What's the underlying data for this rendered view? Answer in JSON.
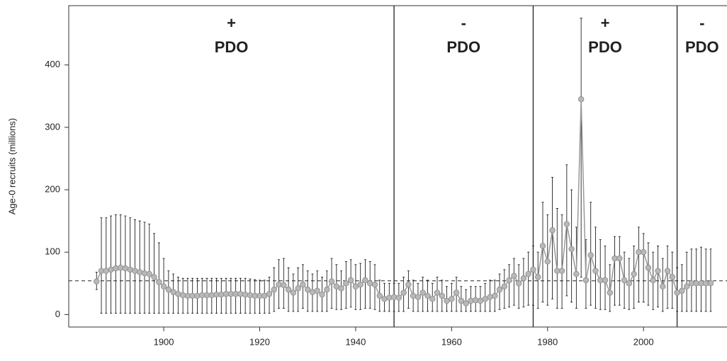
{
  "chart_data": {
    "type": "errorbar-line",
    "y_label": "Age-0 recruits (millions)",
    "xlim": [
      1880.2,
      2017.4
    ],
    "ylim": [
      -20,
      495
    ],
    "xticks": [
      1900,
      1920,
      1940,
      1960,
      1980,
      2000
    ],
    "yticks": [
      0,
      100,
      200,
      300,
      400
    ],
    "reference_line": 54,
    "regime_breaks": [
      1948,
      1977,
      2007
    ],
    "regimes": [
      {
        "sign": "+",
        "label": "PDO"
      },
      {
        "sign": "-",
        "label": "PDO"
      },
      {
        "sign": "+",
        "label": "PDO"
      },
      {
        "sign": "-",
        "label": "PDO"
      }
    ],
    "x": [
      1886,
      1887,
      1888,
      1889,
      1890,
      1891,
      1892,
      1893,
      1894,
      1895,
      1896,
      1897,
      1898,
      1899,
      1900,
      1901,
      1902,
      1903,
      1904,
      1905,
      1906,
      1907,
      1908,
      1909,
      1910,
      1911,
      1912,
      1913,
      1914,
      1915,
      1916,
      1917,
      1918,
      1919,
      1920,
      1921,
      1922,
      1923,
      1924,
      1925,
      1926,
      1927,
      1928,
      1929,
      1930,
      1931,
      1932,
      1933,
      1934,
      1935,
      1936,
      1937,
      1938,
      1939,
      1940,
      1941,
      1942,
      1943,
      1944,
      1945,
      1946,
      1947,
      1948,
      1949,
      1950,
      1951,
      1952,
      1953,
      1954,
      1955,
      1956,
      1957,
      1958,
      1959,
      1960,
      1961,
      1962,
      1963,
      1964,
      1965,
      1966,
      1967,
      1968,
      1969,
      1970,
      1971,
      1972,
      1973,
      1974,
      1975,
      1976,
      1977,
      1978,
      1979,
      1980,
      1981,
      1982,
      1983,
      1984,
      1985,
      1986,
      1987,
      1988,
      1989,
      1990,
      1991,
      1992,
      1993,
      1994,
      1995,
      1996,
      1997,
      1998,
      1999,
      2000,
      2001,
      2002,
      2003,
      2004,
      2005,
      2006,
      2007,
      2008,
      2009,
      2010,
      2011,
      2012,
      2013,
      2014
    ],
    "series": [
      {
        "color": "#b8b8b8",
        "values": [
          53,
          70,
          70,
          72,
          74,
          75,
          74,
          72,
          70,
          68,
          66,
          65,
          60,
          52,
          45,
          40,
          36,
          33,
          31,
          30,
          30,
          30,
          31,
          31,
          31,
          32,
          32,
          33,
          33,
          33,
          33,
          32,
          31,
          30,
          30,
          30,
          33,
          40,
          48,
          47,
          40,
          35,
          42,
          48,
          40,
          36,
          38,
          32,
          40,
          53,
          45,
          42,
          50,
          55,
          45,
          48,
          55,
          50,
          48,
          30,
          25,
          27,
          28,
          27,
          35,
          48,
          30,
          28,
          35,
          30,
          25,
          35,
          30,
          22,
          25,
          35,
          22,
          18,
          22,
          23,
          22,
          25,
          28,
          30,
          40,
          45,
          55,
          62,
          50,
          58,
          65,
          72,
          60,
          110,
          85,
          135,
          70,
          70,
          145,
          105,
          65,
          345,
          55,
          95,
          70,
          55,
          55,
          35,
          90,
          90,
          55,
          50,
          65,
          100,
          100,
          75,
          55,
          70,
          45,
          70,
          60,
          35,
          38,
          45,
          50,
          50,
          50,
          50,
          50
        ],
        "lower": [
          40,
          2,
          2,
          2,
          2,
          2,
          2,
          2,
          2,
          2,
          2,
          2,
          2,
          2,
          2,
          2,
          2,
          2,
          2,
          2,
          2,
          2,
          2,
          2,
          2,
          2,
          2,
          2,
          2,
          2,
          2,
          2,
          2,
          2,
          2,
          2,
          2,
          5,
          10,
          10,
          5,
          5,
          5,
          10,
          5,
          5,
          5,
          5,
          5,
          10,
          8,
          8,
          10,
          12,
          8,
          8,
          10,
          10,
          8,
          5,
          5,
          5,
          5,
          5,
          5,
          10,
          5,
          5,
          5,
          5,
          5,
          5,
          5,
          5,
          5,
          5,
          5,
          5,
          5,
          5,
          5,
          5,
          5,
          5,
          8,
          10,
          12,
          15,
          10,
          12,
          15,
          15,
          10,
          20,
          15,
          25,
          10,
          10,
          30,
          20,
          10,
          60,
          10,
          15,
          10,
          8,
          8,
          5,
          15,
          15,
          10,
          8,
          10,
          20,
          20,
          15,
          8,
          12,
          5,
          10,
          10,
          5,
          5,
          5,
          5,
          5,
          5,
          5,
          5
        ],
        "upper": [
          68,
          155,
          155,
          158,
          160,
          160,
          158,
          155,
          152,
          150,
          148,
          145,
          130,
          115,
          90,
          70,
          65,
          60,
          58,
          58,
          58,
          58,
          58,
          58,
          58,
          58,
          58,
          58,
          58,
          58,
          58,
          58,
          57,
          56,
          55,
          55,
          60,
          75,
          88,
          90,
          75,
          65,
          75,
          80,
          70,
          65,
          70,
          60,
          70,
          90,
          80,
          70,
          85,
          88,
          80,
          82,
          88,
          85,
          80,
          55,
          50,
          50,
          50,
          50,
          60,
          70,
          55,
          50,
          60,
          55,
          50,
          60,
          55,
          45,
          50,
          60,
          45,
          40,
          45,
          45,
          45,
          50,
          55,
          55,
          65,
          72,
          80,
          90,
          80,
          90,
          100,
          110,
          100,
          180,
          160,
          220,
          170,
          160,
          240,
          200,
          140,
          475,
          120,
          180,
          140,
          120,
          110,
          80,
          125,
          125,
          100,
          90,
          110,
          140,
          130,
          115,
          100,
          110,
          90,
          110,
          100,
          75,
          80,
          100,
          105,
          105,
          108,
          105,
          105
        ]
      }
    ]
  }
}
